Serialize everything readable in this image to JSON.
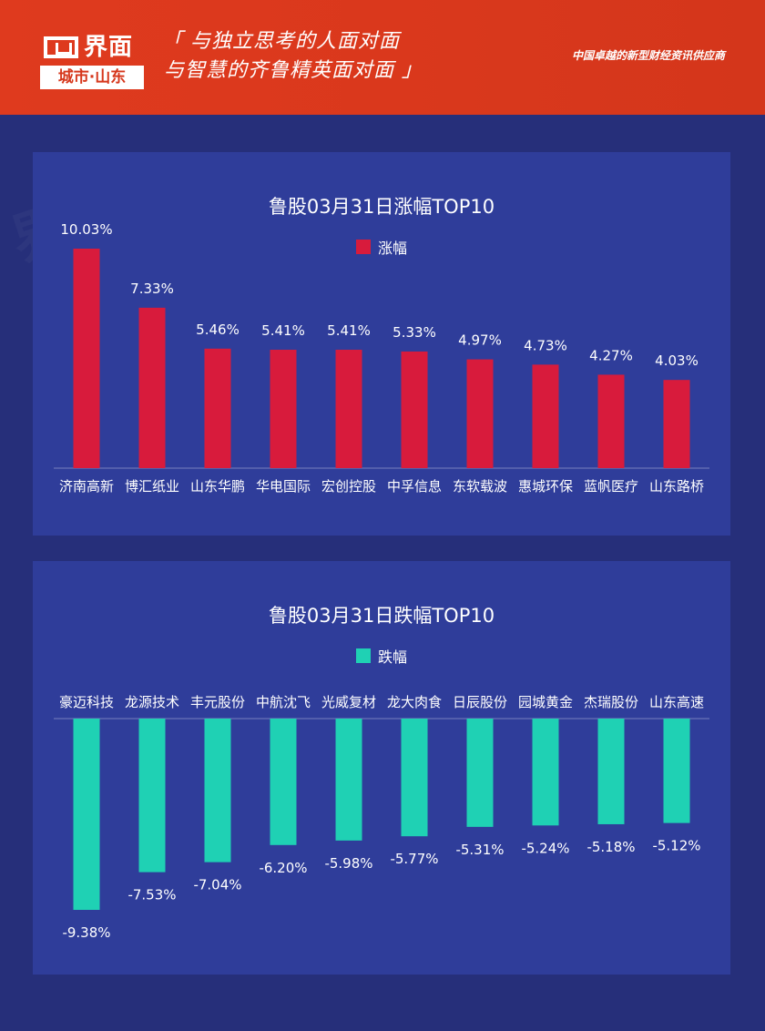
{
  "header": {
    "brand": "界面",
    "brand_sub": "城市·山东",
    "slogan_line1": "「 与独立思考的人面对面",
    "slogan_line2": "与智慧的齐鲁精英面对面 」",
    "tagline": "中国卓越的新型财经资讯供应商"
  },
  "colors": {
    "header_bg": "#d9381c",
    "page_bg": "#262f7a",
    "panel_bg": "#2f3d9a",
    "rise": "#d81b3c",
    "fall": "#1fd1b4"
  },
  "chart_data": [
    {
      "type": "bar",
      "title": "鲁股03月31日涨幅TOP10",
      "legend": "涨幅",
      "legend_position": "top-center",
      "categories": [
        "济南高新",
        "博汇纸业",
        "山东华鹏",
        "华电国际",
        "宏创控股",
        "中孚信息",
        "东软载波",
        "惠城环保",
        "蓝帆医疗",
        "山东路桥"
      ],
      "values": [
        10.03,
        7.33,
        5.46,
        5.41,
        5.41,
        5.33,
        4.97,
        4.73,
        4.27,
        4.03
      ],
      "labels": [
        "10.03%",
        "7.33%",
        "5.46%",
        "5.41%",
        "5.41%",
        "5.33%",
        "4.97%",
        "4.73%",
        "4.27%",
        "4.03%"
      ],
      "ylim": [
        0,
        10.03
      ],
      "grid": false
    },
    {
      "type": "bar",
      "title": "鲁股03月31日跌幅TOP10",
      "legend": "跌幅",
      "legend_position": "top-center",
      "categories": [
        "豪迈科技",
        "龙源技术",
        "丰元股份",
        "中航沈飞",
        "光威复材",
        "龙大肉食",
        "日辰股份",
        "园城黄金",
        "杰瑞股份",
        "山东高速"
      ],
      "values": [
        -9.38,
        -7.53,
        -7.04,
        -6.2,
        -5.98,
        -5.77,
        -5.31,
        -5.24,
        -5.18,
        -5.12
      ],
      "labels": [
        "-9.38%",
        "-7.53%",
        "-7.04%",
        "-6.20%",
        "-5.98%",
        "-5.77%",
        "-5.31%",
        "-5.24%",
        "-5.18%",
        "-5.12%"
      ],
      "ylim": [
        -9.38,
        0
      ],
      "grid": false
    }
  ]
}
